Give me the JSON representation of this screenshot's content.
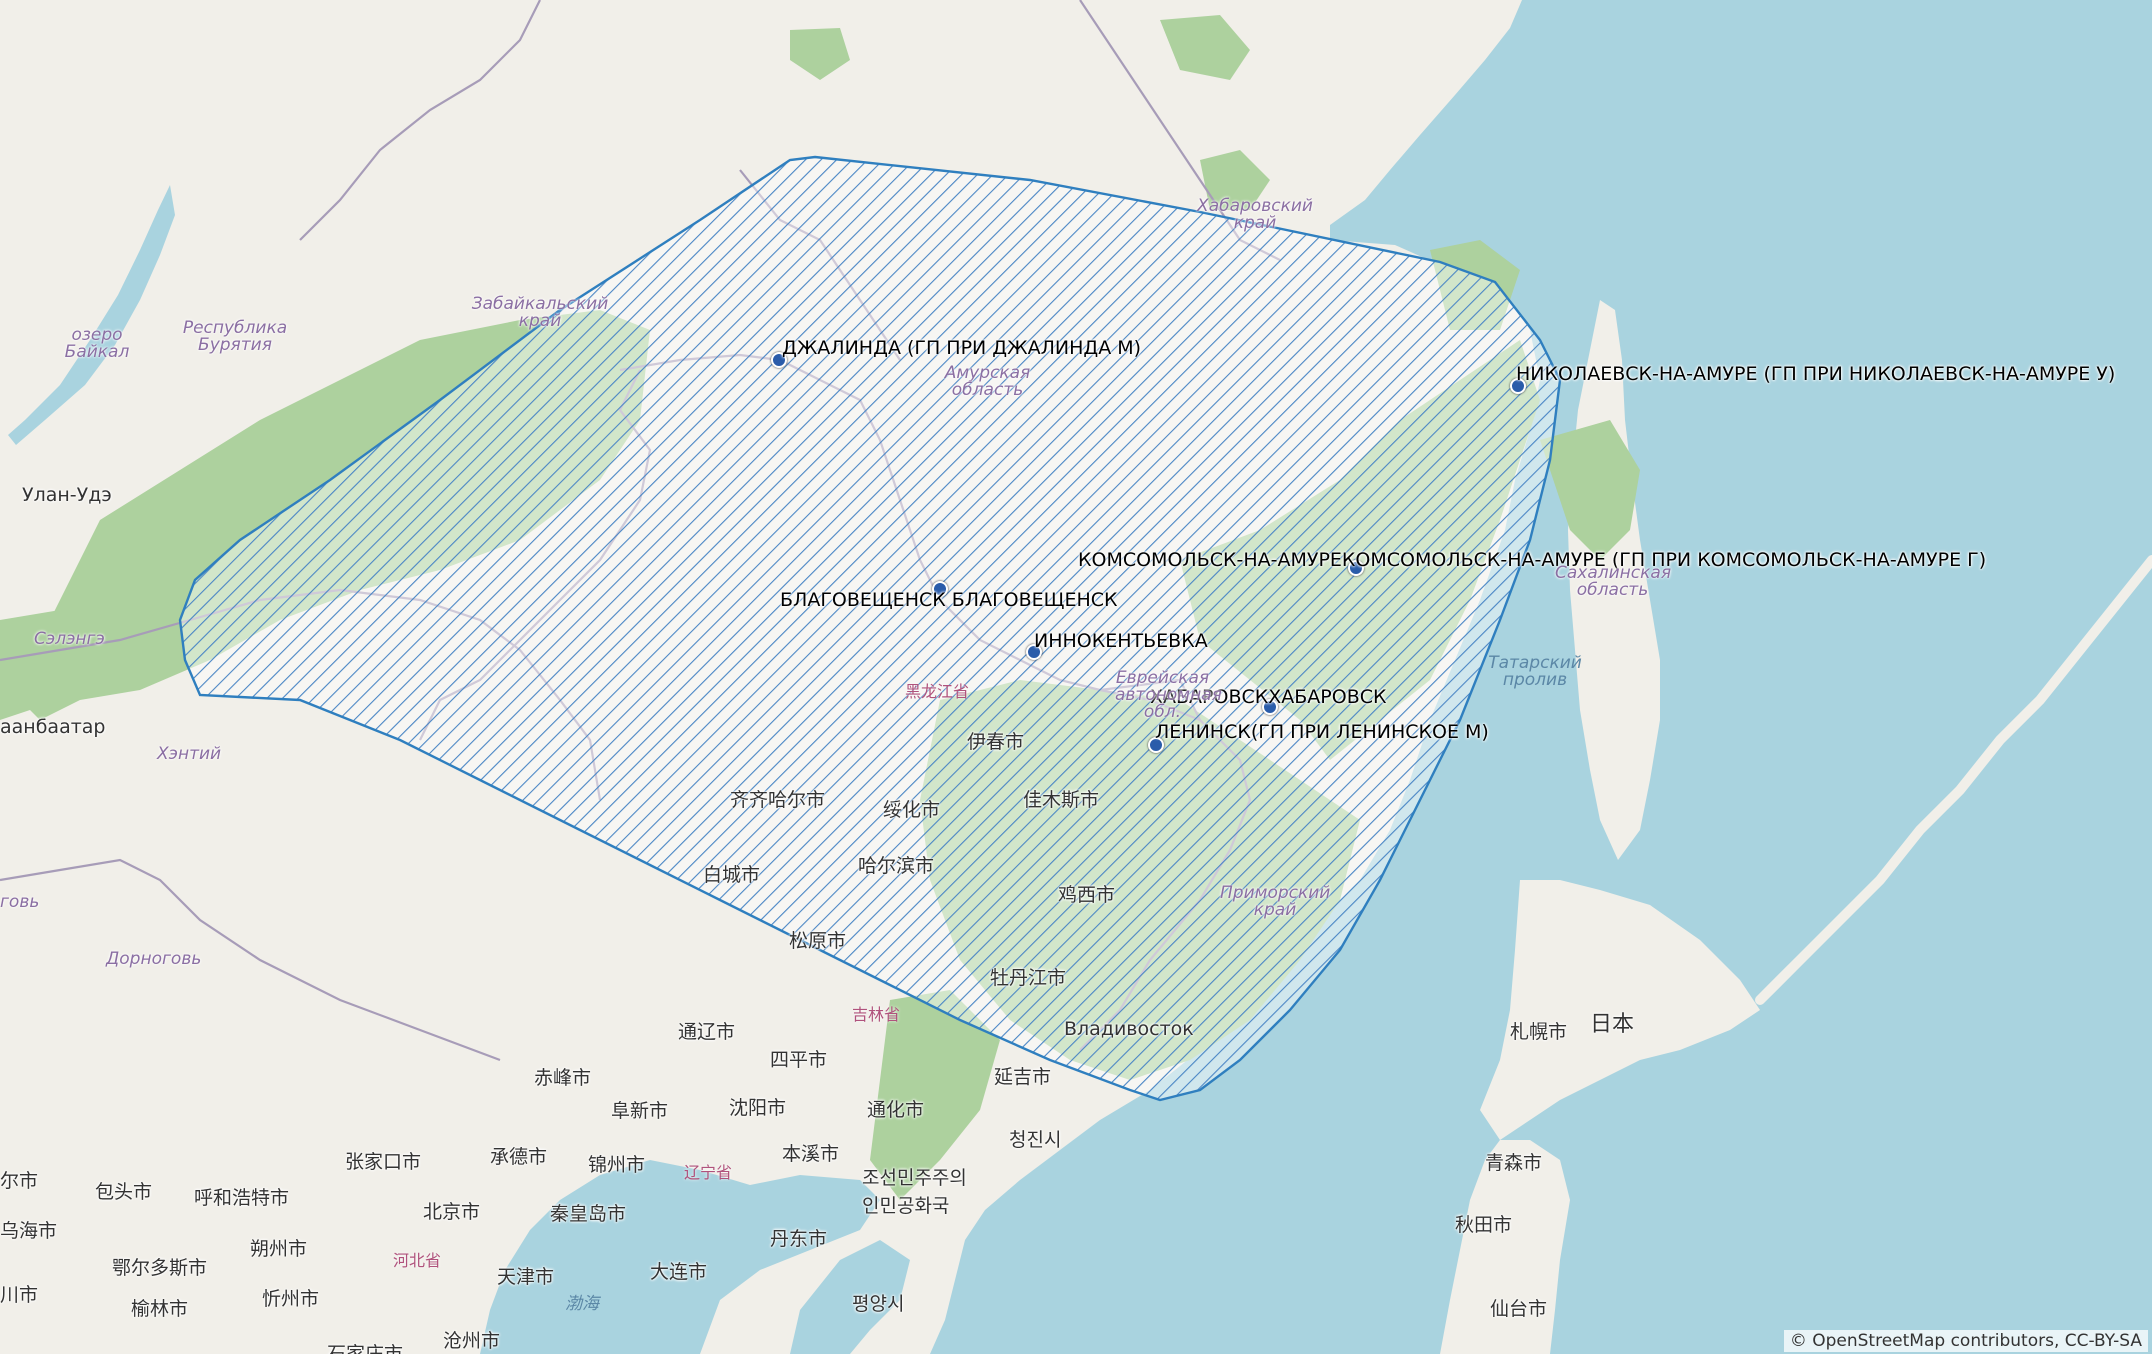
{
  "map": {
    "attribution": "© OpenStreetMap contributors, CC-BY-SA",
    "colors": {
      "water": "#a9d3df",
      "land": "#f1efe9",
      "forest": "#add19e",
      "boundary": "#a79cb8",
      "coverage_stroke": "#2f7fbf",
      "hatch": "#4a86c5",
      "marker": "#2a5caa"
    },
    "stations": [
      {
        "id": "dzhalinda",
        "label": "ДЖАЛИНДА  (ГП ПРИ ДЖАЛИНДА М)"
      },
      {
        "id": "nikolaevsk",
        "label": "НИКОЛАЕВСК-НА-АМУРЕ (ГП ПРИ НИКОЛАЕВСК-НА-АМУРЕ У)"
      },
      {
        "id": "komsomolsk",
        "label": "КОМСОМОЛЬСК-НА-АМУРЕКОМСОМОЛЬСК-НА-АМУРЕ (ГП ПРИ КОМСОМОЛЬСК-НА-АМУРЕ Г)"
      },
      {
        "id": "blagoveshchensk",
        "label": "БЛАГОВЕЩЕНСК БЛАГОВЕЩЕНСК"
      },
      {
        "id": "innokentievka",
        "label": "ИННОКЕНТЬЕВКА"
      },
      {
        "id": "khabarovsk",
        "label": "ХАБАРОВСКХАБАРОВСК"
      },
      {
        "id": "leninsk",
        "label": "ЛЕНИНСК(ГП ПРИ ЛЕНИНСКОЕ М)"
      }
    ],
    "basemap_labels": {
      "regions": [
        {
          "id": "khabarovsky",
          "text": "Хабаровский край"
        },
        {
          "id": "zabaikalsky",
          "text": "Забайкальский край"
        },
        {
          "id": "baikal",
          "text": "озеро Байкал"
        },
        {
          "id": "buryatia",
          "text": "Республика Бурятия"
        },
        {
          "id": "amurskaya",
          "text": "Амурская область"
        },
        {
          "id": "sakhalinskaya",
          "text": "Сахалинская область"
        },
        {
          "id": "primorsky",
          "text": "Приморский край"
        },
        {
          "id": "evreiskaya",
          "text": "Еврейская автономная обл."
        },
        {
          "id": "khentii",
          "text": "Хэнтий"
        },
        {
          "id": "selenge",
          "text": "Сэлэнгэ"
        },
        {
          "id": "dornogov",
          "text": "Дорноговь"
        },
        {
          "id": "gov",
          "text": "говь"
        }
      ],
      "seas": [
        {
          "id": "tatar",
          "text": "Татарский пролив"
        },
        {
          "id": "bohai",
          "text": "渤海"
        }
      ],
      "provinces": [
        {
          "id": "heilongjiang",
          "text": "黑龙江省"
        },
        {
          "id": "jilin",
          "text": "吉林省"
        },
        {
          "id": "liaoning",
          "text": "辽宁省"
        },
        {
          "id": "hebei",
          "text": "河北省"
        }
      ],
      "cities": [
        {
          "id": "ulan-ude",
          "text": "Улан-Удэ"
        },
        {
          "id": "ulaanbaatar",
          "text": "аанбаатар"
        },
        {
          "id": "yichun",
          "text": "伊春市"
        },
        {
          "id": "jiamusi",
          "text": "佳木斯市"
        },
        {
          "id": "suihua",
          "text": "绥化市"
        },
        {
          "id": "qiqihar",
          "text": "齐齐哈尔市"
        },
        {
          "id": "harbin",
          "text": "哈尔滨市"
        },
        {
          "id": "baicheng",
          "text": "白城市"
        },
        {
          "id": "jixi",
          "text": "鸡西市"
        },
        {
          "id": "songyuan",
          "text": "松原市"
        },
        {
          "id": "mudanjiang",
          "text": "牡丹江市"
        },
        {
          "id": "vladivostok",
          "text": "Владивосток"
        },
        {
          "id": "tongliao",
          "text": "通辽市"
        },
        {
          "id": "siping",
          "text": "四平市"
        },
        {
          "id": "chifeng",
          "text": "赤峰市"
        },
        {
          "id": "yanji",
          "text": "延吉市"
        },
        {
          "id": "fuxin",
          "text": "阜新市"
        },
        {
          "id": "shenyang",
          "text": "沈阳市"
        },
        {
          "id": "tonghua",
          "text": "通化市"
        },
        {
          "id": "chongjin",
          "text": "청진시"
        },
        {
          "id": "zhangjiakou",
          "text": "张家口市"
        },
        {
          "id": "chengde",
          "text": "承德市"
        },
        {
          "id": "jinzhou",
          "text": "锦州市"
        },
        {
          "id": "benxi",
          "text": "本溪市"
        },
        {
          "id": "dprk",
          "text": "조선민주주의인민공화국"
        },
        {
          "id": "baotou",
          "text": "包头市"
        },
        {
          "id": "hohhot",
          "text": "呼和浩特市"
        },
        {
          "id": "beijing",
          "text": "北京市"
        },
        {
          "id": "qinhuangdao",
          "text": "秦皇岛市"
        },
        {
          "id": "dandong",
          "text": "丹东市"
        },
        {
          "id": "wuhai",
          "text": "乌海市"
        },
        {
          "id": "ordos",
          "text": "鄂尔多斯市"
        },
        {
          "id": "shuozhou",
          "text": "朔州市"
        },
        {
          "id": "tianjin",
          "text": "天津市"
        },
        {
          "id": "dalian",
          "text": "大连市"
        },
        {
          "id": "yulin",
          "text": "榆林市"
        },
        {
          "id": "xinzhou",
          "text": "忻州市"
        },
        {
          "id": "pyongyang",
          "text": "평양시"
        },
        {
          "id": "cangzhou",
          "text": "沧州市"
        },
        {
          "id": "shijiazhuang",
          "text": "石家庄市"
        },
        {
          "id": "sapporo",
          "text": "札幌市"
        },
        {
          "id": "japan",
          "text": "日本"
        },
        {
          "id": "aomori",
          "text": "青森市"
        },
        {
          "id": "akita",
          "text": "秋田市"
        },
        {
          "id": "sendai",
          "text": "仙台市"
        },
        {
          "id": "bayannur",
          "text": "尔市"
        },
        {
          "id": "shi",
          "text": "川市"
        }
      ]
    }
  }
}
